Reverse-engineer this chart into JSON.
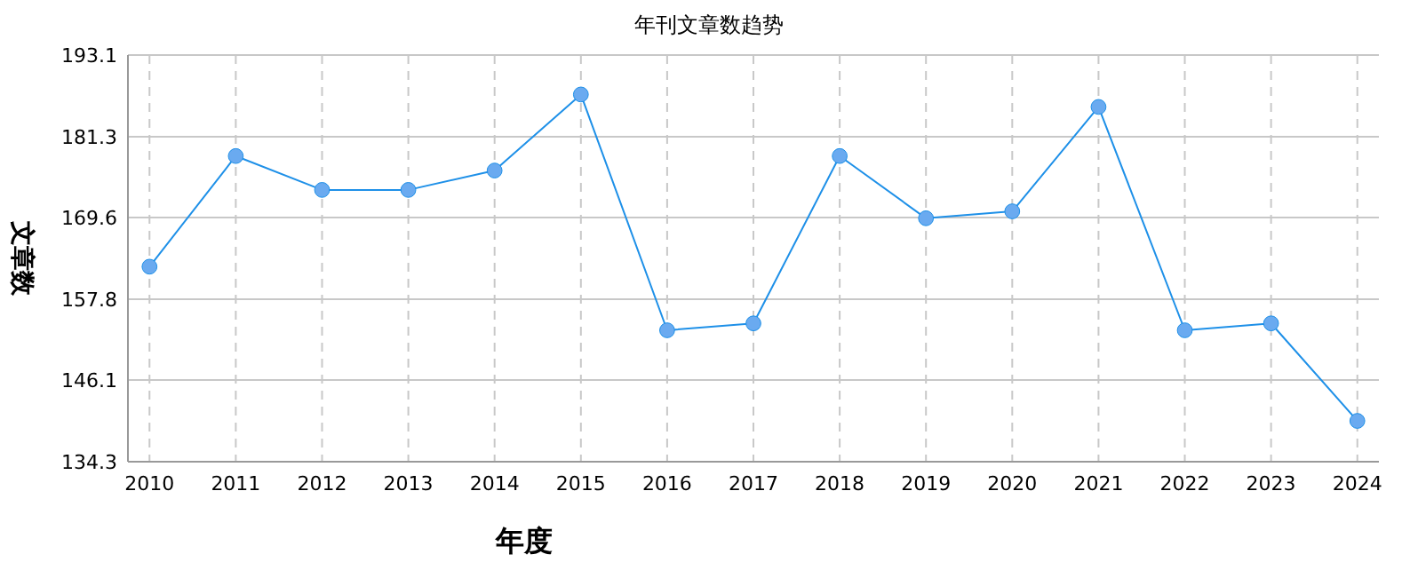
{
  "chart_data": {
    "type": "line",
    "title": "年刊文章数趋势",
    "xlabel": "年度",
    "ylabel": "文章数",
    "categories": [
      "2010",
      "2011",
      "2012",
      "2013",
      "2014",
      "2015",
      "2016",
      "2017",
      "2018",
      "2019",
      "2020",
      "2021",
      "2022",
      "2023",
      "2024"
    ],
    "series": [
      {
        "color": "#1e90e8",
        "values": [
          162.5,
          178.5,
          173.6,
          173.6,
          176.4,
          187.4,
          153.3,
          154.3,
          178.5,
          169.5,
          170.5,
          185.6,
          153.3,
          154.3,
          140.2
        ]
      }
    ],
    "ylim": [
      134.3,
      193.1
    ],
    "yticks": [
      134.3,
      146.1,
      157.8,
      169.6,
      181.3,
      193.1
    ],
    "grid": true,
    "marker": "circle"
  }
}
